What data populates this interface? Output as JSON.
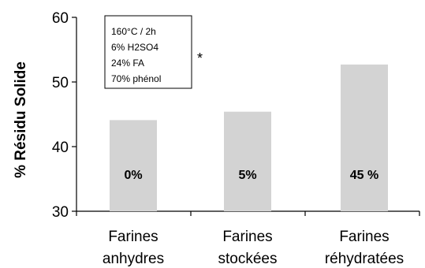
{
  "chart_data": {
    "type": "bar",
    "categories": [
      [
        "Farines",
        "anhydres"
      ],
      [
        "Farines",
        "stockées"
      ],
      [
        "Farines",
        "réhydratées"
      ]
    ],
    "values": [
      44.1,
      45.4,
      52.7
    ],
    "bar_labels": [
      "0%",
      "5%",
      "45 %"
    ],
    "ylabel": "% Résidu Solide",
    "ylim": [
      30,
      60
    ],
    "yticks": [
      30,
      40,
      50,
      60
    ],
    "bar_color": "#d3d3d3",
    "annotation_box": [
      "160°C / 2h",
      "6% H2SO4",
      "24% FA",
      "70% phénol"
    ],
    "annotation_marker": "*"
  }
}
